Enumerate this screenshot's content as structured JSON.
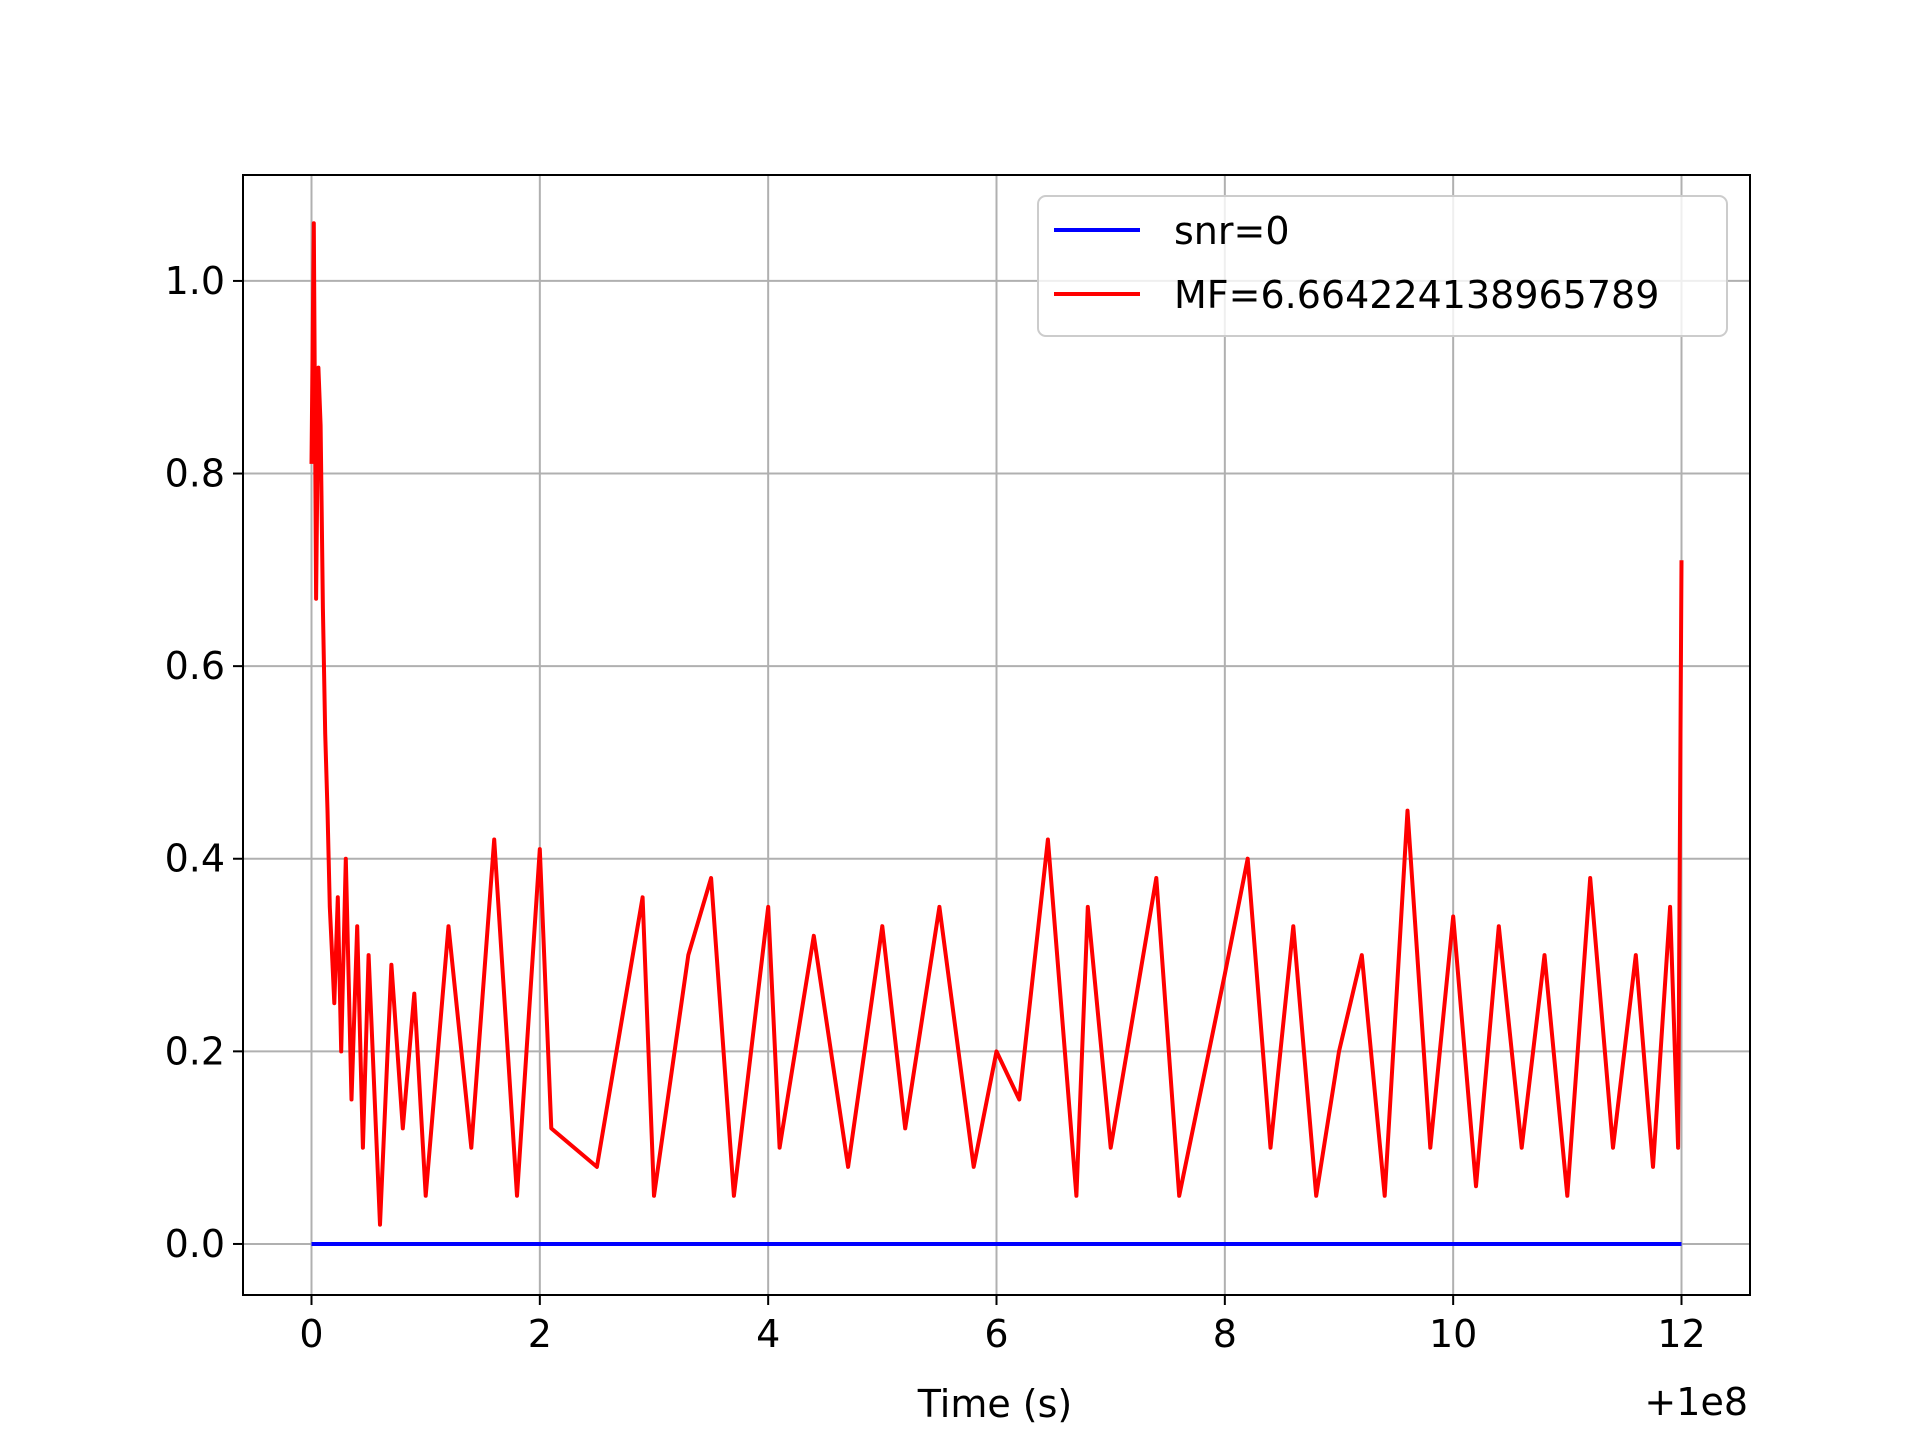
{
  "chart_data": {
    "type": "line",
    "title": "",
    "xlabel": "Time (s)",
    "ylabel": "",
    "x_offset_label": "+1e8",
    "xlim": [
      -0.6,
      12.6
    ],
    "ylim": [
      -0.053,
      1.11
    ],
    "grid": true,
    "legend_position": "upper right",
    "x_ticks": [
      0,
      2,
      4,
      6,
      8,
      10,
      12
    ],
    "x_tick_labels": [
      "0",
      "2",
      "4",
      "6",
      "8",
      "10",
      "12"
    ],
    "y_ticks": [
      0.0,
      0.2,
      0.4,
      0.6,
      0.8,
      1.0
    ],
    "y_tick_labels": [
      "0.0",
      "0.2",
      "0.4",
      "0.6",
      "0.8",
      "1.0"
    ],
    "series": [
      {
        "name": "snr=0",
        "color": "#0000ff",
        "x": [
          0,
          12
        ],
        "y": [
          0.0,
          0.0
        ]
      },
      {
        "name": "MF=6.664224138965789",
        "color": "#ff0000",
        "x": [
          0.0,
          0.02,
          0.04,
          0.06,
          0.08,
          0.1,
          0.12,
          0.14,
          0.16,
          0.18,
          0.2,
          0.23,
          0.26,
          0.3,
          0.35,
          0.4,
          0.45,
          0.5,
          0.6,
          0.7,
          0.8,
          0.9,
          1.0,
          1.2,
          1.4,
          1.6,
          1.8,
          2.0,
          2.1,
          2.5,
          2.9,
          3.0,
          3.3,
          3.5,
          3.7,
          4.0,
          4.1,
          4.4,
          4.7,
          5.0,
          5.2,
          5.5,
          5.8,
          6.0,
          6.2,
          6.45,
          6.7,
          6.8,
          7.0,
          7.4,
          7.6,
          8.0,
          8.2,
          8.4,
          8.6,
          8.8,
          9.0,
          9.2,
          9.4,
          9.6,
          9.8,
          10.0,
          10.2,
          10.4,
          10.6,
          10.8,
          11.0,
          11.2,
          11.4,
          11.6,
          11.75,
          11.9,
          11.97,
          12.0
        ],
        "y": [
          0.81,
          1.06,
          0.67,
          0.91,
          0.85,
          0.66,
          0.53,
          0.45,
          0.35,
          0.3,
          0.25,
          0.36,
          0.2,
          0.4,
          0.15,
          0.33,
          0.1,
          0.3,
          0.02,
          0.29,
          0.12,
          0.26,
          0.05,
          0.33,
          0.1,
          0.42,
          0.05,
          0.41,
          0.12,
          0.08,
          0.36,
          0.05,
          0.3,
          0.38,
          0.05,
          0.35,
          0.1,
          0.32,
          0.08,
          0.33,
          0.12,
          0.35,
          0.08,
          0.2,
          0.15,
          0.42,
          0.05,
          0.35,
          0.1,
          0.38,
          0.05,
          0.28,
          0.4,
          0.1,
          0.33,
          0.05,
          0.2,
          0.3,
          0.05,
          0.45,
          0.1,
          0.34,
          0.06,
          0.33,
          0.1,
          0.3,
          0.05,
          0.38,
          0.1,
          0.3,
          0.08,
          0.35,
          0.1,
          0.71
        ]
      }
    ]
  }
}
